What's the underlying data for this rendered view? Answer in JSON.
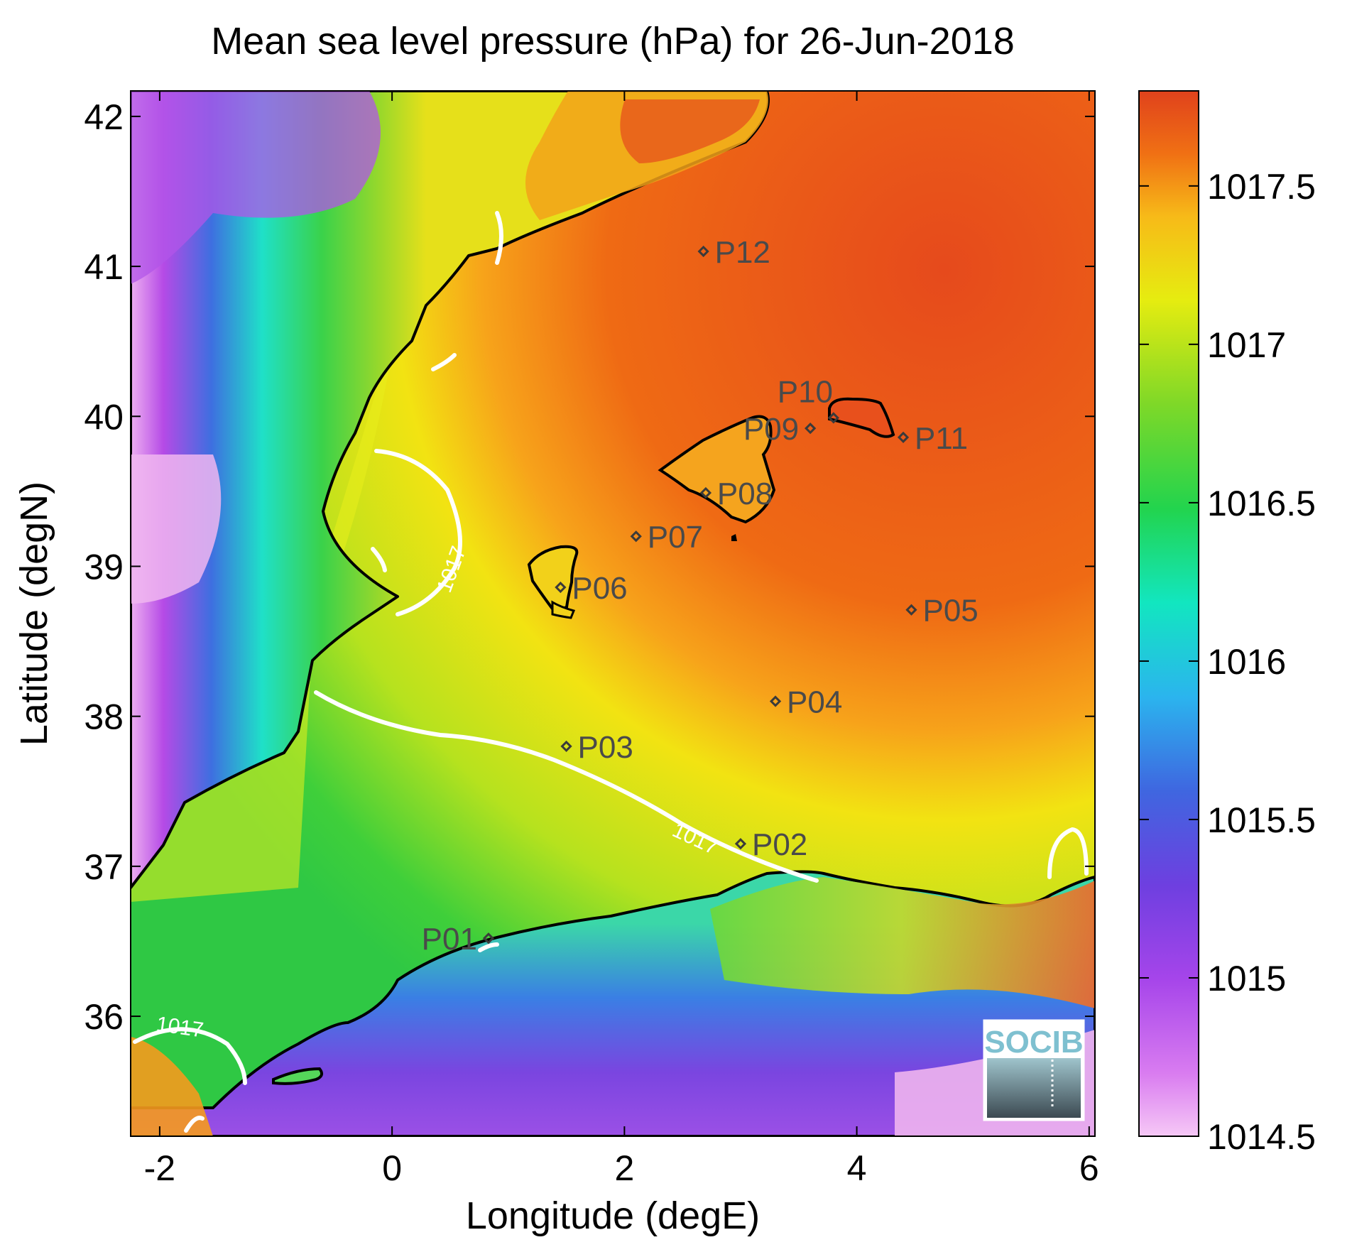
{
  "title": "Mean sea level pressure (hPa) for 26-Jun-2018",
  "xlabel": "Longitude (degE)",
  "ylabel": "Latitude (degN)",
  "x_ticks": [
    "-2",
    "0",
    "2",
    "4",
    "6"
  ],
  "y_ticks": [
    "36",
    "37",
    "38",
    "39",
    "40",
    "41",
    "42"
  ],
  "colorbar_ticks": [
    "1014.5",
    "1015",
    "1015.5",
    "1016",
    "1016.5",
    "1017",
    "1017.5"
  ],
  "contour_label": "1017",
  "logo_text": "SOCIB",
  "chart_data": {
    "type": "heatmap",
    "title": "Mean sea level pressure (hPa) for 26-Jun-2018",
    "xlabel": "Longitude (degE)",
    "ylabel": "Latitude (degN)",
    "xlim": [
      -2.25,
      6.05
    ],
    "ylim": [
      35.2,
      42.17
    ],
    "colorbar": {
      "min": 1014.5,
      "max": 1017.8,
      "ticks": [
        1014.5,
        1015,
        1015.5,
        1016,
        1016.5,
        1017,
        1017.5
      ]
    },
    "contour_levels": [
      1017
    ],
    "stations": [
      {
        "name": "P01",
        "lon": 0.83,
        "lat": 36.52
      },
      {
        "name": "P02",
        "lon": 3.0,
        "lat": 37.15
      },
      {
        "name": "P03",
        "lon": 1.5,
        "lat": 37.8
      },
      {
        "name": "P04",
        "lon": 3.3,
        "lat": 38.1
      },
      {
        "name": "P05",
        "lon": 4.47,
        "lat": 38.71
      },
      {
        "name": "P06",
        "lon": 1.45,
        "lat": 38.86
      },
      {
        "name": "P07",
        "lon": 2.1,
        "lat": 39.2
      },
      {
        "name": "P08",
        "lon": 2.7,
        "lat": 39.49
      },
      {
        "name": "P09",
        "lon": 3.6,
        "lat": 39.92
      },
      {
        "name": "P10",
        "lon": 3.8,
        "lat": 39.99
      },
      {
        "name": "P11",
        "lon": 4.4,
        "lat": 39.86
      },
      {
        "name": "P12",
        "lon": 2.68,
        "lat": 41.1
      }
    ]
  }
}
